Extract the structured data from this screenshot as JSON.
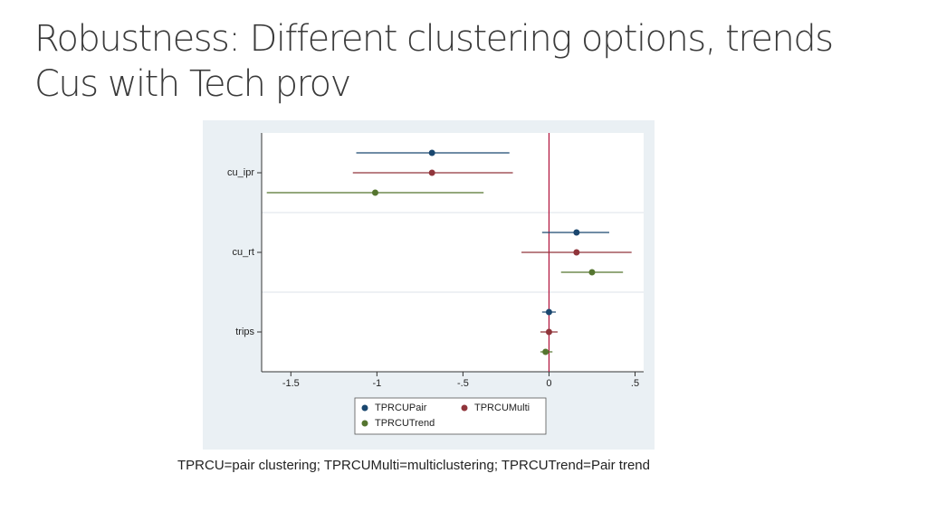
{
  "slide": {
    "title": [
      "Robustness: Different clustering options, trends",
      "Cus with Tech prov"
    ],
    "caption": "TPRCU=pair clustering; TPRCUMulti=multiclustering; TPRCUTrend=Pair trend"
  },
  "chart_data": {
    "type": "coefplot",
    "categories": [
      "cu_ipr",
      "cu_rt",
      "trips"
    ],
    "series": [
      {
        "name": "TPRCUPair",
        "color": "#1a476f",
        "values": [
          -0.68,
          0.16,
          0.0
        ],
        "lower": [
          -1.12,
          -0.04,
          -0.04
        ],
        "upper": [
          -0.23,
          0.35,
          0.04
        ]
      },
      {
        "name": "TPRCUMulti",
        "color": "#90353b",
        "values": [
          -0.68,
          0.16,
          0.0
        ],
        "lower": [
          -1.14,
          -0.16,
          -0.05
        ],
        "upper": [
          -0.21,
          0.48,
          0.05
        ]
      },
      {
        "name": "TPRCUTrend",
        "color": "#55752f",
        "values": [
          -1.01,
          0.25,
          -0.02
        ],
        "lower": [
          -1.64,
          0.07,
          -0.05
        ],
        "upper": [
          -0.38,
          0.43,
          0.02
        ]
      }
    ],
    "xlim": [
      -1.67,
      0.55
    ],
    "xticks": [
      -1.5,
      -1,
      {
        "value": -0.5,
        "label": "-.5"
      },
      0,
      {
        "value": 0.5,
        "label": ".5"
      }
    ],
    "xline": 0,
    "xline_color": "#b0103a"
  }
}
